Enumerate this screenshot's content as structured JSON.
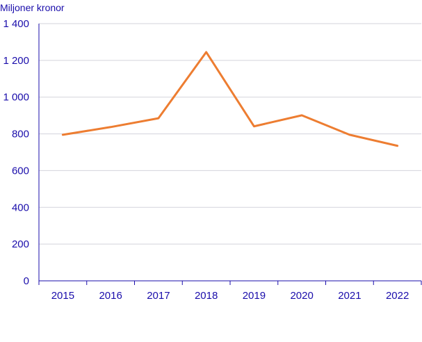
{
  "chart_data": {
    "type": "line",
    "title": "",
    "xlabel": "",
    "ylabel": "Miljoner kronor",
    "categories": [
      "2015",
      "2016",
      "2017",
      "2018",
      "2019",
      "2020",
      "2021",
      "2022"
    ],
    "series": [
      {
        "values": [
          795,
          837,
          885,
          1245,
          841,
          901,
          795,
          735
        ],
        "color": "#ED7D31"
      }
    ],
    "ylim": [
      0,
      1400
    ],
    "yticks": [
      0,
      200,
      400,
      600,
      800,
      1000,
      1200,
      1400
    ],
    "ytick_labels": [
      "0",
      "200",
      "400",
      "600",
      "800",
      "1 000",
      "1 200",
      "1 400"
    ],
    "grid": true,
    "legend": "none",
    "axis_color": "#1A0DAB",
    "grid_color": "#D3D3DB",
    "text_color": "#1A0DAB"
  }
}
